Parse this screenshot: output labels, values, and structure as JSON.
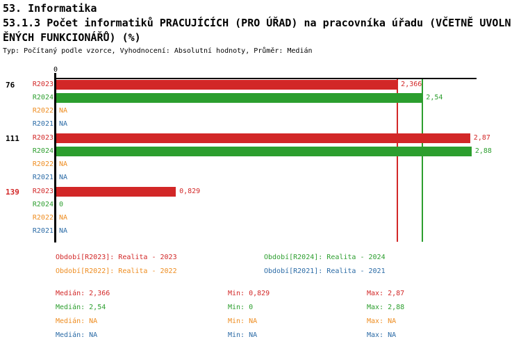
{
  "title": {
    "line1": "53. Informatika",
    "line2": "53.1.3 Počet informatiků PRACUJÍCÍCH (PRO ÚŘAD) na pracovníka úřadu (VČETNĚ UVOLN",
    "line3": "ĚNÝCH FUNKCIONÁŘŮ) (%)",
    "meta": "Typ: Počítaný podle vzorce, Vyhodnocení: Absolutní hodnoty, Průměr: Medián"
  },
  "axis": {
    "zero_label": "0"
  },
  "colors": {
    "r2023": "#d22727",
    "r2024": "#2c9e2e",
    "r2022": "#ee8d21",
    "r2021": "#2b6ba6",
    "text": "#000000",
    "highlighted_category": "#d22727",
    "axis": "#000000",
    "background": "#ffffff"
  },
  "chart_data": {
    "type": "bar",
    "orientation": "horizontal",
    "title": "53.1.3 Počet informatiků PRACUJÍCÍCH (PRO ÚŘAD) na pracovníka úřadu (VČETNĚ UVOLNĚNÝCH FUNKCIONÁŘŮ) (%)",
    "subtitle": "Typ: Počítaný podle vzorce, Vyhodnocení: Absolutní hodnoty, Průměr: Medián",
    "categories": [
      "76",
      "111",
      "139"
    ],
    "category_colors": [
      "#000000",
      "#000000",
      "#d22727"
    ],
    "xlim": [
      0,
      2.92
    ],
    "grid": false,
    "legend_position": "bottom",
    "series": [
      {
        "name": "R2023",
        "color": "#d22727",
        "values": [
          2.366,
          2.87,
          0.829
        ],
        "display": [
          "2,366",
          "2,87",
          "0,829"
        ]
      },
      {
        "name": "R2024",
        "color": "#2c9e2e",
        "values": [
          2.54,
          2.88,
          0
        ],
        "display": [
          "2,54",
          "2,88",
          "0"
        ]
      },
      {
        "name": "R2022",
        "color": "#ee8d21",
        "values": [
          null,
          null,
          null
        ],
        "display": [
          "NA",
          "NA",
          "NA"
        ]
      },
      {
        "name": "R2021",
        "color": "#2b6ba6",
        "values": [
          null,
          null,
          null
        ],
        "display": [
          "NA",
          "NA",
          "NA"
        ]
      }
    ],
    "reference_lines": [
      {
        "label": "Medián R2023",
        "value": 2.366,
        "color": "#d22727"
      },
      {
        "label": "Medián R2024",
        "value": 2.54,
        "color": "#2c9e2e"
      }
    ]
  },
  "legend": {
    "items": [
      {
        "id": "r2023",
        "text": "Období[R2023]: Realita - 2023",
        "color": "#d22727"
      },
      {
        "id": "r2024",
        "text": "Období[R2024]: Realita - 2024",
        "color": "#2c9e2e"
      },
      {
        "id": "r2022",
        "text": "Období[R2022]: Realita - 2022",
        "color": "#ee8d21"
      },
      {
        "id": "r2021",
        "text": "Období[R2021]: Realita - 2021",
        "color": "#2b6ba6"
      }
    ]
  },
  "stats": {
    "rows": [
      {
        "id": "r2023",
        "color": "#d22727",
        "median": "Medián: 2,366",
        "min": "Min: 0,829",
        "max": "Max: 2,87"
      },
      {
        "id": "r2024",
        "color": "#2c9e2e",
        "median": "Medián: 2,54",
        "min": "Min: 0",
        "max": "Max: 2,88"
      },
      {
        "id": "r2022",
        "color": "#ee8d21",
        "median": "Medián: NA",
        "min": "Min: NA",
        "max": "Max: NA"
      },
      {
        "id": "r2021",
        "color": "#2b6ba6",
        "median": "Medián: NA",
        "min": "Min: NA",
        "max": "Max: NA"
      }
    ]
  }
}
